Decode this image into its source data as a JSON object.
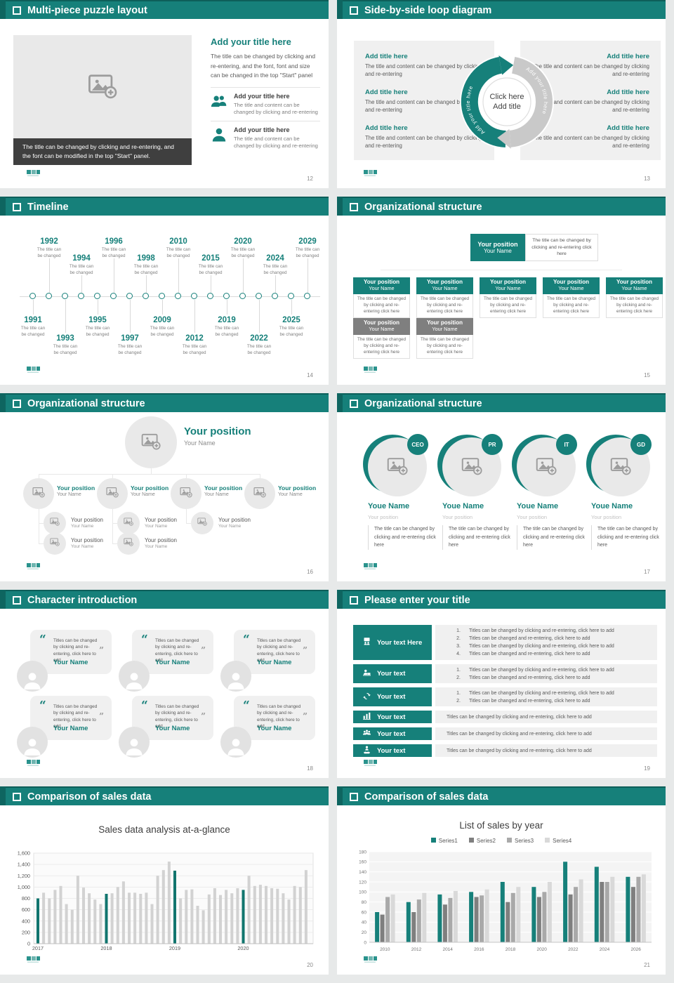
{
  "theme": {
    "teal": "#16807a",
    "teal_dark": "#0e6560",
    "gray_header": "#7f7f7f",
    "text_gray": "#595959",
    "panel_gray": "#f0f0f0",
    "caption_dark": "#3f3f3f"
  },
  "slides": {
    "puzzle": {
      "title": "Multi-piece puzzle layout",
      "page": "12",
      "caption": "The title can be changed by clicking and re-entering, and the font can be modified in the top \"Start\" panel.",
      "heading": "Add your title here",
      "paragraph": "The title can be changed by clicking and re-entering, and the font, font and size can be changed in the top \"Start\" panel",
      "items": [
        {
          "icon": "people-icon",
          "title": "Add your title here",
          "text": "The title and content can be changed by clicking and re-entering"
        },
        {
          "icon": "person-icon",
          "title": "Add your title here",
          "text": "The title and content can be changed by clicking and re-entering"
        }
      ]
    },
    "loop": {
      "title": "Side-by-side loop diagram",
      "page": "13",
      "left_items": [
        {
          "title": "Add title here",
          "text": "The title and content can be changed by clicking and re-entering"
        },
        {
          "title": "Add title here",
          "text": "The title and content can be changed by clicking and re-entering"
        },
        {
          "title": "Add title here",
          "text": "The title and content can be changed by clicking and re-entering"
        }
      ],
      "right_items": [
        {
          "title": "Add title here",
          "text": "The title and content can be changed by clicking and re-entering"
        },
        {
          "title": "Add title here",
          "text": "The title and content can be changed by clicking and re-entering"
        },
        {
          "title": "Add title here",
          "text": "The title and content can be changed by clicking and re-entering"
        }
      ],
      "arc_left_label": "Add your title here",
      "arc_right_label": "Add your title here",
      "center_line1": "Click here",
      "center_line2": "Add title"
    },
    "timeline": {
      "title": "Timeline",
      "page": "14",
      "caption_line1": "The title can",
      "caption_line2": "be changed",
      "points": [
        {
          "year": "1991",
          "side": "below",
          "level": 1
        },
        {
          "year": "1992",
          "side": "above",
          "level": 2
        },
        {
          "year": "1993",
          "side": "below",
          "level": 2
        },
        {
          "year": "1994",
          "side": "above",
          "level": 1
        },
        {
          "year": "1995",
          "side": "below",
          "level": 1
        },
        {
          "year": "1996",
          "side": "above",
          "level": 2
        },
        {
          "year": "1997",
          "side": "below",
          "level": 2
        },
        {
          "year": "1998",
          "side": "above",
          "level": 1
        },
        {
          "year": "2009",
          "side": "below",
          "level": 1
        },
        {
          "year": "2010",
          "side": "above",
          "level": 2
        },
        {
          "year": "2012",
          "side": "below",
          "level": 2
        },
        {
          "year": "2015",
          "side": "above",
          "level": 1
        },
        {
          "year": "2019",
          "side": "below",
          "level": 1
        },
        {
          "year": "2020",
          "side": "above",
          "level": 2
        },
        {
          "year": "2022",
          "side": "below",
          "level": 2
        },
        {
          "year": "2024",
          "side": "above",
          "level": 1
        },
        {
          "year": "2025",
          "side": "below",
          "level": 1
        },
        {
          "year": "2029",
          "side": "above",
          "level": 2
        }
      ]
    },
    "org_cards": {
      "title": "Organizational structure",
      "page": "15",
      "root": {
        "position": "Your position",
        "name": "Your Name",
        "note": "The title can be changed by clicking and re-entering click here"
      },
      "card": {
        "position": "Your position",
        "name": "Your Name",
        "note": "The title can be changed by clicking and re-entering click here"
      },
      "row1_count": 5,
      "row2_count": 2
    },
    "org_tree": {
      "title": "Organizational structure",
      "page": "16",
      "root": {
        "position": "Your position",
        "name": "Your Name"
      },
      "branches": [
        {
          "position": "Your position",
          "name": "Your Name",
          "children": 2
        },
        {
          "position": "Your position",
          "name": "Your Name",
          "children": 2
        },
        {
          "position": "Your position",
          "name": "Your Name",
          "children": 1
        },
        {
          "position": "Your position",
          "name": "Your Name",
          "children": 0
        }
      ],
      "child": {
        "position": "Your position",
        "name": "Your Name"
      }
    },
    "org_people": {
      "title": "Organizational structure",
      "page": "17",
      "members": [
        {
          "badge": "CEO",
          "name": "Youe Name",
          "position": "Your position",
          "text": "The title can be changed by clicking and re-entering click here"
        },
        {
          "badge": "PR",
          "name": "Youe Name",
          "position": "Your position",
          "text": "The title can be changed by clicking and re-entering click here"
        },
        {
          "badge": "IT",
          "name": "Youe Name",
          "position": "Your position",
          "text": "The title can be changed by clicking and re-entering click here"
        },
        {
          "badge": "GD",
          "name": "Youe Name",
          "position": "Your position",
          "text": "The title can be changed by clicking and re-entering click here"
        }
      ]
    },
    "characters": {
      "title": "Character introduction",
      "page": "18",
      "open_quote": "“",
      "close_quote": "”",
      "cards": [
        {
          "quote": "Titles can be changed by clicking and re-entering, click here to add",
          "name": "Your Name"
        },
        {
          "quote": "Titles can be changed by clicking and re-entering, click here to add",
          "name": "Your Name"
        },
        {
          "quote": "Titles can be changed by clicking and re-entering, click here to add",
          "name": "Your Name"
        },
        {
          "quote": "Titles can be changed by clicking and re-entering, click here to add",
          "name": "Your Name"
        },
        {
          "quote": "Titles can be changed by clicking and re-entering, click here to add",
          "name": "Your Name"
        },
        {
          "quote": "Titles can be changed by clicking and re-entering, click here to add",
          "name": "Your Name"
        }
      ]
    },
    "titles": {
      "title": "Please enter your title",
      "page": "19",
      "rows": [
        {
          "icon": "presentation-icon",
          "label": "Your text Here",
          "numbered": true,
          "items": [
            "Titles can be changed by clicking and re-entering, click here to add",
            "Titles can be changed and re-entering, click here to add",
            "Titles can be changed by clicking and re-entering, click here to add",
            "Titles can be changed and re-entering, click here to add"
          ]
        },
        {
          "icon": "person-desk-icon",
          "label": "Your text",
          "numbered": true,
          "items": [
            "Titles can be changed by clicking and re-entering, click here to add",
            "Titles can be changed and re-entering, click here to add"
          ]
        },
        {
          "icon": "sync-icon",
          "label": "Your text",
          "numbered": true,
          "items": [
            "Titles can be changed by clicking and re-entering, click here to add",
            "Titles can be changed and re-entering, click here to add"
          ]
        },
        {
          "icon": "bar-chart-icon",
          "label": "Your text",
          "numbered": false,
          "items": [
            "Titles can be changed by clicking and re-entering, click here to add"
          ]
        },
        {
          "icon": "team-icon",
          "label": "Your text",
          "numbered": false,
          "items": [
            "Titles can be changed by clicking and re-entering, click here to add"
          ]
        },
        {
          "icon": "support-icon",
          "label": "Your text",
          "numbered": false,
          "items": [
            "Titles can be changed by clicking and re-entering, click here to add"
          ]
        }
      ]
    },
    "chart1": {
      "title": "Comparison of sales data",
      "page": "20"
    },
    "chart2": {
      "title": "Comparison of sales data",
      "page": "21"
    }
  },
  "chart_data": [
    {
      "type": "bar",
      "title": "Sales data analysis at-a-glance",
      "ylim": [
        0,
        1600
      ],
      "ytick_step": 200,
      "ytick_labels": [
        "0",
        "200",
        "400",
        "600",
        "800",
        "1,000",
        "1,200",
        "1,400",
        "1,600"
      ],
      "groups": [
        "2017",
        "2018",
        "2019",
        "2020"
      ],
      "group_size": 12,
      "values": [
        800,
        900,
        800,
        950,
        1020,
        700,
        600,
        1200,
        990,
        890,
        780,
        700,
        880,
        890,
        1000,
        1100,
        900,
        900,
        880,
        900,
        700,
        1200,
        1300,
        1450,
        1290,
        800,
        950,
        960,
        670,
        590,
        870,
        980,
        860,
        950,
        890,
        980,
        950,
        1200,
        1020,
        1040,
        1020,
        980,
        970,
        890,
        780,
        1020,
        1000,
        1300
      ],
      "highlight_indices": [
        0,
        12,
        24,
        36
      ],
      "bar_color": "#d2d2d2",
      "highlight_color": "#11756e",
      "grid": true,
      "legend_position": "none"
    },
    {
      "type": "bar",
      "title": "List of sales by year",
      "ylim": [
        0,
        180
      ],
      "ytick_step": 20,
      "ytick_labels": [
        "0",
        "20",
        "40",
        "60",
        "80",
        "100",
        "120",
        "140",
        "160",
        "180"
      ],
      "categories": [
        "2010",
        "2012",
        "2014",
        "2016",
        "2018",
        "2020",
        "2022",
        "2024",
        "2026"
      ],
      "series": [
        {
          "name": "Series1",
          "color": "#16807a",
          "values": [
            60,
            80,
            95,
            100,
            120,
            110,
            160,
            150,
            130
          ]
        },
        {
          "name": "Series2",
          "color": "#7f7f7f",
          "values": [
            55,
            60,
            75,
            90,
            80,
            90,
            95,
            120,
            110
          ]
        },
        {
          "name": "Series3",
          "color": "#a9a9a9",
          "values": [
            90,
            85,
            88,
            93,
            98,
            100,
            110,
            120,
            130
          ]
        },
        {
          "name": "Series4",
          "color": "#d9d9d9",
          "values": [
            95,
            98,
            102,
            105,
            110,
            120,
            125,
            130,
            135
          ]
        }
      ],
      "grid": true,
      "legend_position": "top"
    }
  ]
}
